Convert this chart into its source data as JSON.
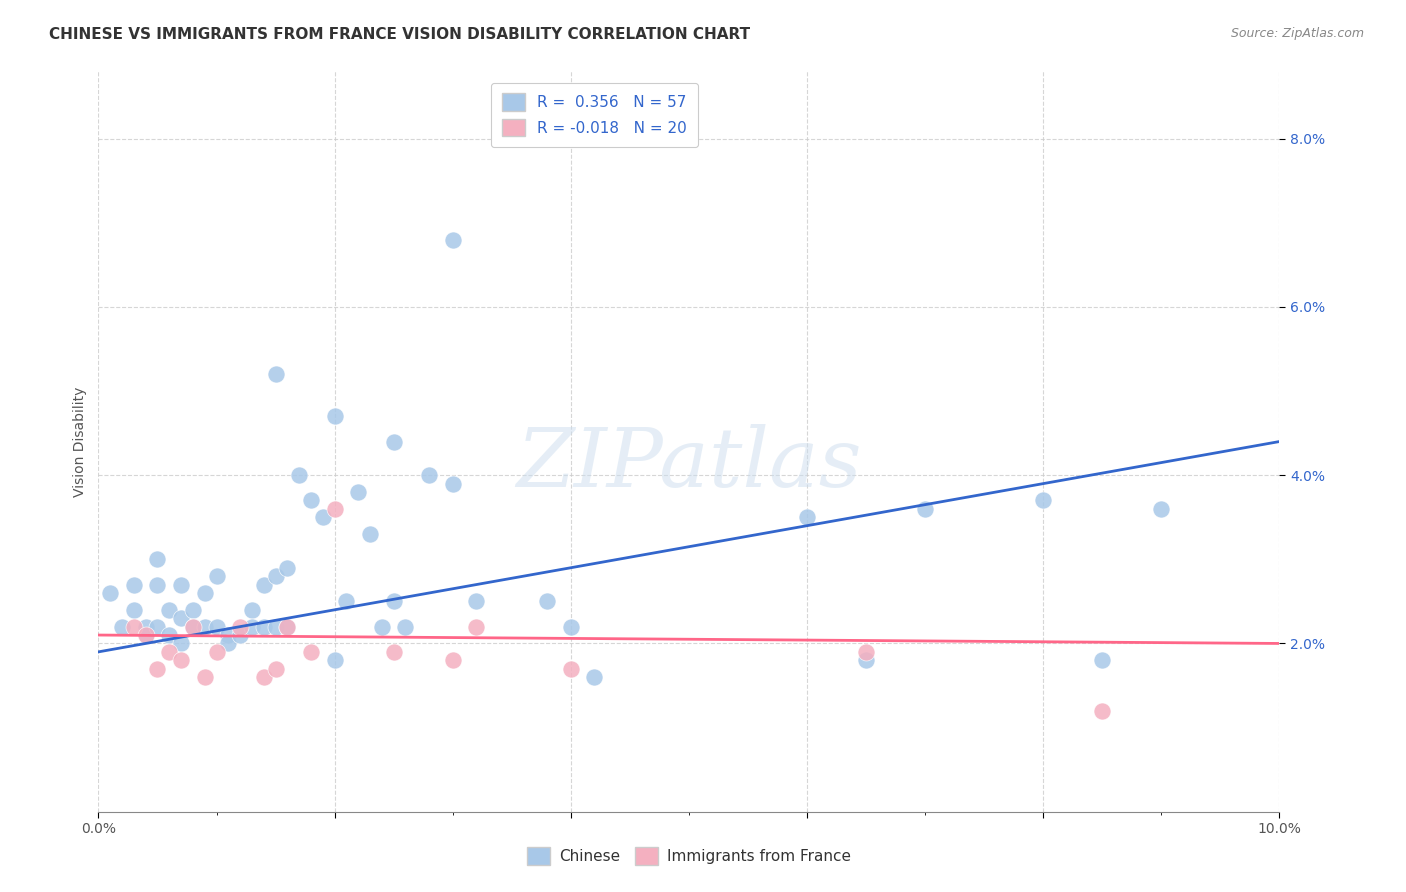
{
  "title": "CHINESE VS IMMIGRANTS FROM FRANCE VISION DISABILITY CORRELATION CHART",
  "source": "Source: ZipAtlas.com",
  "ylabel": "Vision Disability",
  "xlim": [
    0.0,
    0.1
  ],
  "ylim": [
    0.0,
    0.088
  ],
  "blue_color": "#A8C8E8",
  "pink_color": "#F4B0C0",
  "blue_line_color": "#3366CC",
  "pink_line_color": "#FF6688",
  "watermark_text": "ZIPatlas",
  "legend_label1": "R =  0.356   N = 57",
  "legend_label2": "R = -0.018   N = 20",
  "title_fontsize": 11,
  "tick_fontsize": 10,
  "legend_fontsize": 11,
  "source_fontsize": 9,
  "ylabel_fontsize": 10,
  "chinese_x": [
    0.001,
    0.002,
    0.003,
    0.003,
    0.004,
    0.004,
    0.005,
    0.005,
    0.005,
    0.006,
    0.006,
    0.007,
    0.007,
    0.007,
    0.008,
    0.008,
    0.009,
    0.009,
    0.01,
    0.01,
    0.011,
    0.011,
    0.012,
    0.013,
    0.013,
    0.014,
    0.014,
    0.015,
    0.015,
    0.016,
    0.016,
    0.017,
    0.018,
    0.019,
    0.02,
    0.021,
    0.022,
    0.023,
    0.024,
    0.025,
    0.026,
    0.028,
    0.03,
    0.032,
    0.038,
    0.04,
    0.042,
    0.06,
    0.065,
    0.07,
    0.08,
    0.085,
    0.09,
    0.015,
    0.02,
    0.025,
    0.03
  ],
  "chinese_y": [
    0.026,
    0.022,
    0.027,
    0.024,
    0.021,
    0.022,
    0.03,
    0.027,
    0.022,
    0.021,
    0.024,
    0.02,
    0.023,
    0.027,
    0.024,
    0.022,
    0.026,
    0.022,
    0.028,
    0.022,
    0.021,
    0.02,
    0.021,
    0.024,
    0.022,
    0.022,
    0.027,
    0.028,
    0.022,
    0.029,
    0.022,
    0.04,
    0.037,
    0.035,
    0.018,
    0.025,
    0.038,
    0.033,
    0.022,
    0.025,
    0.022,
    0.04,
    0.039,
    0.025,
    0.025,
    0.022,
    0.016,
    0.035,
    0.018,
    0.036,
    0.037,
    0.018,
    0.036,
    0.052,
    0.047,
    0.044,
    0.068
  ],
  "france_x": [
    0.003,
    0.004,
    0.005,
    0.006,
    0.007,
    0.008,
    0.009,
    0.01,
    0.012,
    0.014,
    0.015,
    0.016,
    0.018,
    0.02,
    0.025,
    0.03,
    0.032,
    0.04,
    0.065,
    0.085
  ],
  "france_y": [
    0.022,
    0.021,
    0.017,
    0.019,
    0.018,
    0.022,
    0.016,
    0.019,
    0.022,
    0.016,
    0.017,
    0.022,
    0.019,
    0.036,
    0.019,
    0.018,
    0.022,
    0.017,
    0.019,
    0.012
  ],
  "blue_trendline_x": [
    0.0,
    0.1
  ],
  "blue_trendline_y": [
    0.019,
    0.044
  ],
  "pink_trendline_x": [
    0.0,
    0.1
  ],
  "pink_trendline_y": [
    0.021,
    0.02
  ]
}
